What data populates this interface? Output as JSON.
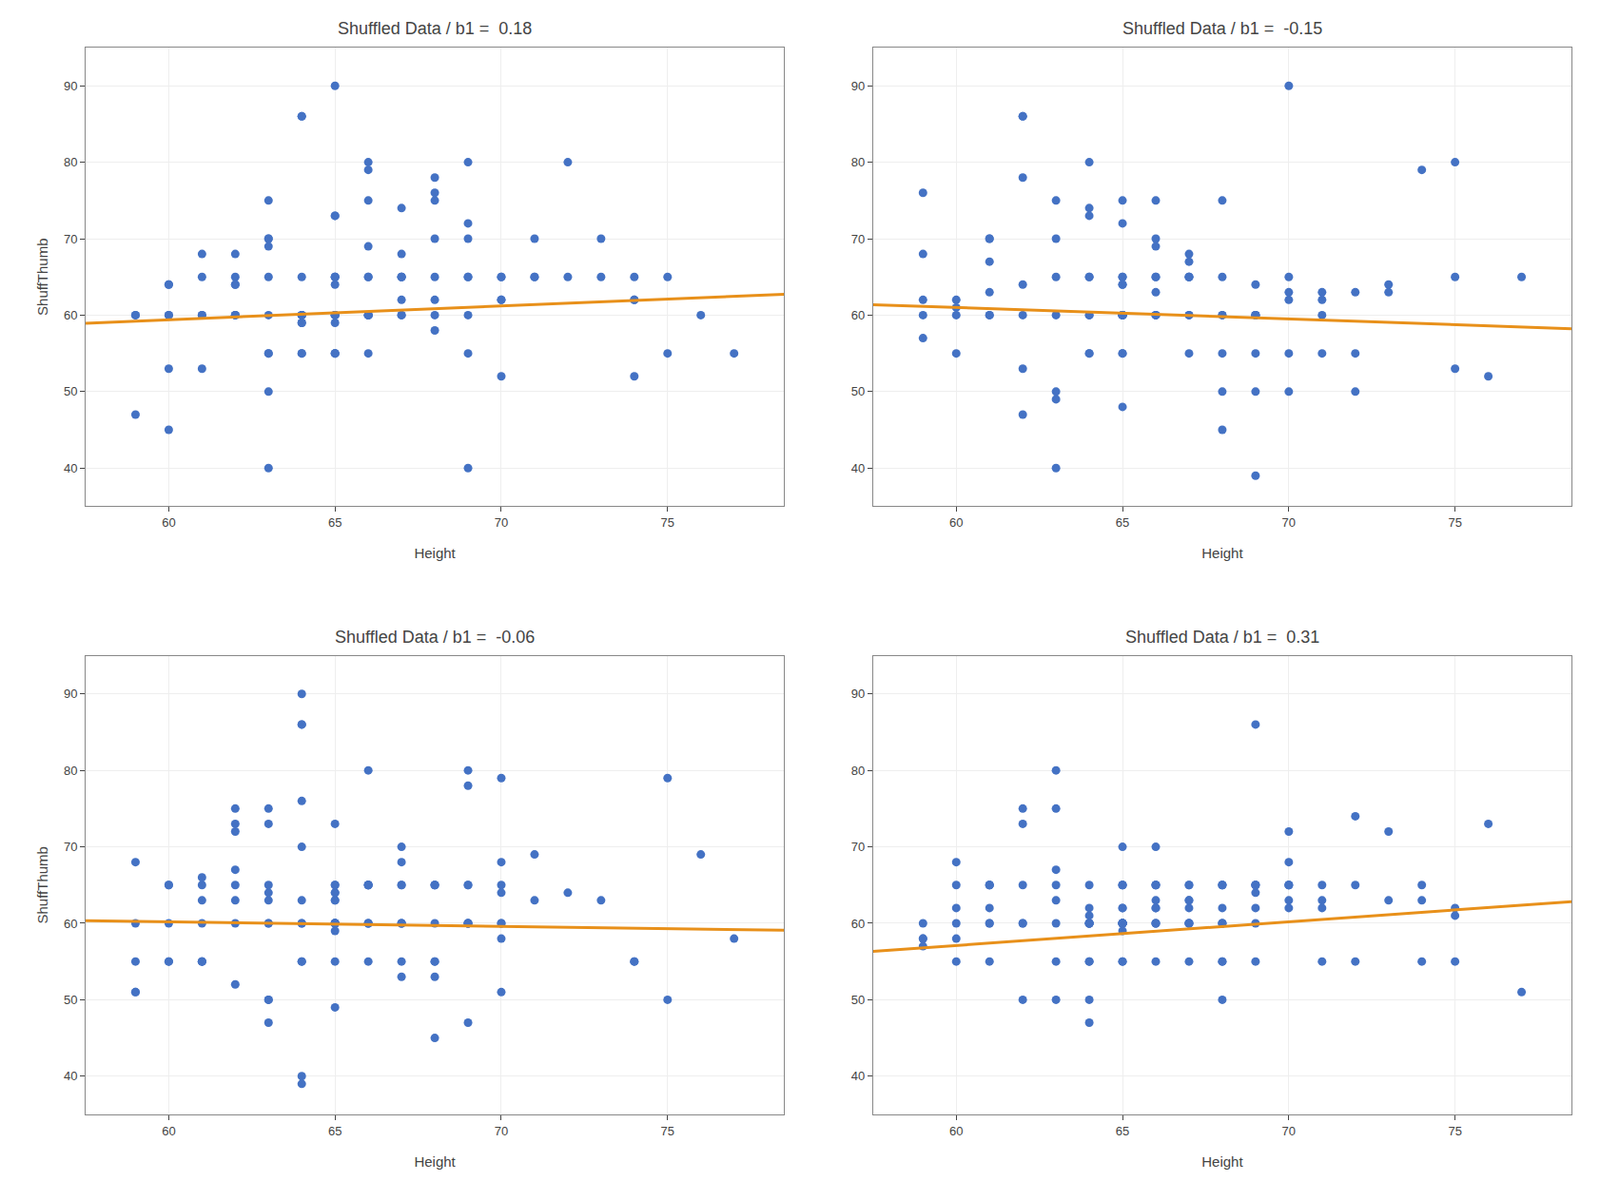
{
  "chart_data": [
    {
      "type": "scatter",
      "title": "Shuffled Data / b1 =  0.18",
      "xlabel": "Height",
      "ylabel": "ShuffThumb",
      "xlim": [
        57.5,
        78.5
      ],
      "ylim": [
        35,
        95
      ],
      "xticks": [
        60,
        65,
        70,
        75
      ],
      "yticks": [
        40,
        50,
        60,
        70,
        80,
        90
      ],
      "grid": true,
      "series": [
        {
          "type": "scatter",
          "color": "#4472C4",
          "x": [
            59,
            59,
            59,
            60,
            60,
            60,
            60,
            60,
            60,
            61,
            61,
            61,
            61,
            61,
            62,
            62,
            62,
            62,
            62,
            62,
            62,
            63,
            63,
            63,
            63,
            63,
            63,
            63,
            63,
            63,
            63,
            64,
            64,
            64,
            64,
            64,
            64,
            64,
            64,
            64,
            64,
            64,
            65,
            65,
            65,
            65,
            65,
            65,
            65,
            65,
            65,
            65,
            65,
            65,
            65,
            65,
            65,
            66,
            66,
            66,
            66,
            66,
            66,
            66,
            66,
            66,
            66,
            66,
            66,
            67,
            67,
            67,
            67,
            67,
            67,
            67,
            67,
            68,
            68,
            68,
            68,
            68,
            68,
            68,
            68,
            69,
            69,
            69,
            69,
            69,
            69,
            69,
            69,
            70,
            70,
            70,
            70,
            70,
            71,
            71,
            71,
            72,
            72,
            73,
            73,
            74,
            74,
            74,
            74,
            75,
            75,
            76,
            77
          ],
          "values": [
            60,
            47,
            60,
            45,
            60,
            60,
            64,
            64,
            53,
            53,
            68,
            60,
            60,
            65,
            65,
            64,
            64,
            68,
            60,
            60,
            60,
            40,
            70,
            70,
            69,
            50,
            55,
            55,
            65,
            75,
            60,
            60,
            60,
            60,
            59,
            59,
            55,
            55,
            86,
            60,
            65,
            86,
            90,
            64,
            73,
            73,
            65,
            65,
            65,
            55,
            55,
            55,
            60,
            60,
            60,
            59,
            60,
            60,
            55,
            80,
            79,
            75,
            65,
            69,
            60,
            60,
            60,
            65,
            60,
            60,
            65,
            65,
            62,
            65,
            60,
            74,
            68,
            75,
            62,
            70,
            76,
            78,
            65,
            58,
            60,
            40,
            70,
            72,
            65,
            80,
            55,
            60,
            65,
            65,
            65,
            62,
            62,
            52,
            65,
            65,
            70,
            80,
            65,
            70,
            65,
            65,
            62,
            62,
            52,
            65,
            55,
            60,
            55
          ]
        },
        {
          "type": "line",
          "color": "#E8901A",
          "x": [
            57.5,
            78.5
          ],
          "values": [
            58.95,
            62.73
          ]
        }
      ]
    },
    {
      "type": "scatter",
      "title": "Shuffled Data / b1 =  -0.15",
      "xlabel": "Height",
      "xlim": [
        57.5,
        78.5
      ],
      "ylim": [
        35,
        95
      ],
      "xticks": [
        60,
        65,
        70,
        75
      ],
      "yticks": [
        40,
        50,
        60,
        70,
        80,
        90
      ],
      "grid": true,
      "series": [
        {
          "type": "scatter",
          "color": "#4472C4",
          "x": [
            59,
            59,
            59,
            59,
            59,
            60,
            60,
            60,
            60,
            61,
            61,
            61,
            61,
            61,
            61,
            62,
            62,
            62,
            62,
            62,
            62,
            62,
            63,
            63,
            63,
            63,
            63,
            63,
            63,
            64,
            64,
            64,
            64,
            64,
            64,
            64,
            64,
            64,
            65,
            65,
            65,
            65,
            65,
            65,
            65,
            65,
            65,
            65,
            65,
            65,
            65,
            65,
            65,
            65,
            66,
            66,
            66,
            66,
            66,
            66,
            66,
            66,
            66,
            67,
            67,
            67,
            67,
            67,
            67,
            67,
            67,
            68,
            68,
            68,
            68,
            68,
            68,
            68,
            69,
            69,
            69,
            69,
            69,
            69,
            69,
            69,
            70,
            70,
            70,
            70,
            70,
            70,
            71,
            71,
            71,
            71,
            72,
            72,
            72,
            73,
            73,
            74,
            75,
            75,
            75,
            76,
            77
          ],
          "values": [
            57,
            68,
            76,
            62,
            60,
            55,
            60,
            61,
            62,
            70,
            70,
            60,
            63,
            67,
            60,
            47,
            78,
            86,
            86,
            53,
            64,
            60,
            50,
            40,
            49,
            60,
            70,
            65,
            75,
            74,
            73,
            65,
            55,
            55,
            80,
            60,
            60,
            65,
            75,
            72,
            64,
            65,
            65,
            64,
            60,
            60,
            55,
            48,
            60,
            60,
            60,
            60,
            60,
            55,
            75,
            69,
            70,
            60,
            65,
            65,
            60,
            60,
            63,
            60,
            67,
            68,
            65,
            65,
            55,
            60,
            65,
            75,
            55,
            60,
            60,
            50,
            45,
            65,
            39,
            64,
            60,
            60,
            50,
            55,
            60,
            60,
            90,
            65,
            55,
            62,
            63,
            50,
            60,
            62,
            63,
            55,
            50,
            55,
            63,
            63,
            64,
            79,
            53,
            80,
            65,
            52,
            65
          ]
        },
        {
          "type": "line",
          "color": "#E8901A",
          "x": [
            57.5,
            78.5
          ],
          "values": [
            61.375,
            58.225
          ]
        }
      ]
    },
    {
      "type": "scatter",
      "title": "Shuffled Data / b1 =  -0.06",
      "xlabel": "Height",
      "ylabel": "ShuffThumb",
      "xlim": [
        57.5,
        78.5
      ],
      "ylim": [
        35,
        95
      ],
      "xticks": [
        60,
        65,
        70,
        75
      ],
      "yticks": [
        40,
        50,
        60,
        70,
        80,
        90
      ],
      "grid": true,
      "series": [
        {
          "type": "scatter",
          "color": "#4472C4",
          "x": [
            59,
            59,
            59,
            59,
            59,
            60,
            60,
            60,
            60,
            60,
            61,
            61,
            61,
            61,
            61,
            61,
            61,
            62,
            62,
            62,
            62,
            62,
            62,
            62,
            62,
            63,
            63,
            63,
            63,
            63,
            63,
            63,
            63,
            63,
            63,
            64,
            64,
            64,
            64,
            64,
            64,
            64,
            64,
            64,
            64,
            64,
            64,
            65,
            65,
            65,
            65,
            65,
            65,
            65,
            65,
            65,
            65,
            65,
            65,
            65,
            65,
            65,
            65,
            65,
            66,
            66,
            66,
            66,
            66,
            66,
            66,
            66,
            66,
            67,
            67,
            67,
            67,
            67,
            67,
            67,
            67,
            67,
            68,
            68,
            68,
            68,
            68,
            68,
            68,
            68,
            69,
            69,
            69,
            69,
            69,
            69,
            69,
            69,
            69,
            70,
            70,
            70,
            70,
            70,
            70,
            70,
            70,
            71,
            71,
            72,
            73,
            74,
            74,
            75,
            75,
            76,
            77
          ],
          "values": [
            68,
            51,
            51,
            60,
            55,
            65,
            65,
            55,
            55,
            60,
            65,
            66,
            63,
            60,
            55,
            55,
            55,
            67,
            63,
            75,
            73,
            72,
            52,
            60,
            65,
            50,
            47,
            50,
            60,
            63,
            64,
            75,
            73,
            60,
            65,
            90,
            86,
            86,
            40,
            39,
            55,
            55,
            76,
            70,
            60,
            63,
            60,
            64,
            60,
            60,
            55,
            64,
            73,
            63,
            63,
            49,
            60,
            60,
            65,
            65,
            60,
            60,
            60,
            59,
            80,
            65,
            65,
            60,
            65,
            60,
            60,
            65,
            55,
            60,
            68,
            65,
            55,
            65,
            60,
            53,
            70,
            60,
            53,
            65,
            55,
            45,
            65,
            60,
            55,
            65,
            65,
            60,
            47,
            60,
            60,
            60,
            65,
            80,
            78,
            51,
            60,
            60,
            65,
            68,
            79,
            64,
            58,
            63,
            69,
            64,
            63,
            55,
            55,
            50,
            79,
            69,
            58
          ]
        },
        {
          "type": "line",
          "color": "#E8901A",
          "x": [
            57.5,
            78.5
          ],
          "values": [
            60.35,
            59.09
          ]
        }
      ]
    },
    {
      "type": "scatter",
      "title": "Shuffled Data / b1 =  0.31",
      "xlabel": "Height",
      "xlim": [
        57.5,
        78.5
      ],
      "ylim": [
        35,
        95
      ],
      "xticks": [
        60,
        65,
        70,
        75
      ],
      "yticks": [
        40,
        50,
        60,
        70,
        80,
        90
      ],
      "grid": true,
      "series": [
        {
          "type": "scatter",
          "color": "#4472C4",
          "x": [
            59,
            59,
            59,
            59,
            60,
            60,
            60,
            60,
            60,
            60,
            61,
            61,
            61,
            61,
            61,
            61,
            61,
            62,
            62,
            62,
            62,
            62,
            62,
            63,
            63,
            63,
            63,
            63,
            63,
            63,
            63,
            64,
            64,
            64,
            64,
            64,
            64,
            64,
            64,
            64,
            64,
            64,
            64,
            65,
            65,
            65,
            65,
            65,
            65,
            65,
            65,
            65,
            65,
            65,
            65,
            65,
            65,
            65,
            65,
            65,
            66,
            66,
            66,
            66,
            66,
            66,
            66,
            66,
            66,
            66,
            66,
            67,
            67,
            67,
            67,
            67,
            67,
            67,
            67,
            67,
            67,
            68,
            68,
            68,
            68,
            68,
            68,
            68,
            68,
            68,
            68,
            69,
            69,
            69,
            69,
            69,
            69,
            69,
            69,
            70,
            70,
            70,
            70,
            70,
            70,
            70,
            71,
            71,
            71,
            71,
            72,
            72,
            72,
            73,
            73,
            74,
            74,
            74,
            75,
            75,
            75,
            76,
            77
          ],
          "values": [
            58,
            58,
            57,
            60,
            68,
            65,
            55,
            60,
            62,
            58,
            65,
            65,
            60,
            55,
            60,
            62,
            65,
            60,
            75,
            73,
            50,
            60,
            65,
            67,
            50,
            65,
            60,
            80,
            75,
            63,
            55,
            55,
            55,
            60,
            47,
            61,
            60,
            60,
            60,
            60,
            62,
            50,
            65,
            55,
            59,
            65,
            60,
            62,
            65,
            70,
            60,
            60,
            55,
            60,
            60,
            60,
            65,
            60,
            62,
            60,
            65,
            60,
            62,
            65,
            70,
            65,
            55,
            62,
            63,
            60,
            60,
            60,
            65,
            55,
            62,
            63,
            60,
            60,
            60,
            63,
            65,
            60,
            60,
            65,
            65,
            55,
            65,
            50,
            62,
            60,
            55,
            65,
            86,
            60,
            64,
            55,
            65,
            65,
            62,
            65,
            65,
            62,
            65,
            68,
            63,
            72,
            63,
            65,
            55,
            62,
            74,
            55,
            65,
            63,
            72,
            63,
            65,
            55,
            62,
            61,
            55,
            73,
            51
          ]
        },
        {
          "type": "line",
          "color": "#E8901A",
          "x": [
            57.5,
            78.5
          ],
          "values": [
            56.325,
            62.835
          ]
        }
      ]
    }
  ]
}
